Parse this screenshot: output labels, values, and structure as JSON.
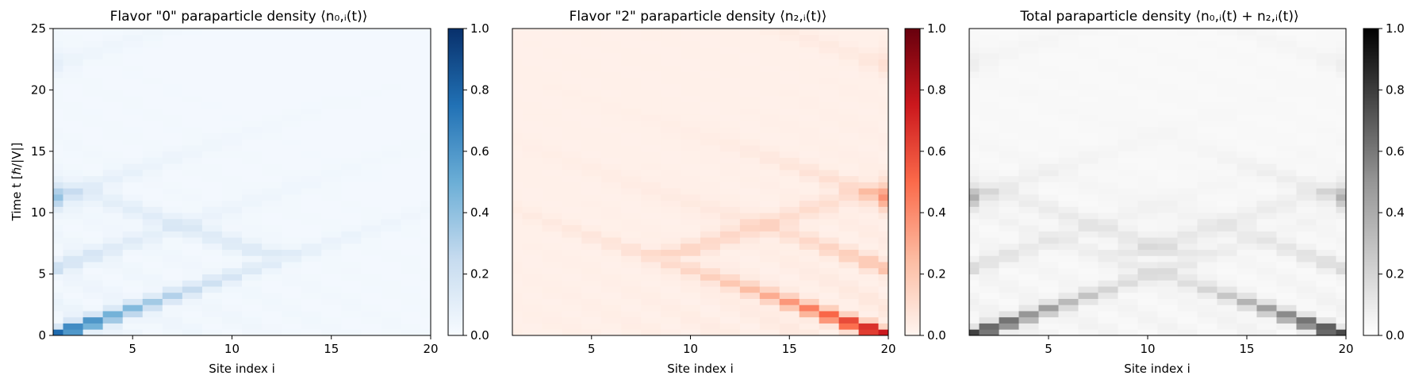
{
  "chart_data": [
    {
      "type": "heatmap",
      "title": "Flavor \"0\" paraparticle density ⟨n₀,ᵢ(t)⟩",
      "xlabel": "Site index i",
      "ylabel": "Time t [ℏ/|V|]",
      "xlim": [
        1,
        20
      ],
      "ylim": [
        0,
        25
      ],
      "xticks": [
        "5",
        "10",
        "15",
        "20"
      ],
      "yticks": [
        "0",
        "5",
        "10",
        "15",
        "20",
        "25"
      ],
      "colormap": "Blues",
      "color_low": "#f7fbff",
      "color_high": "#08306b",
      "colorbar": {
        "range": [
          0,
          1
        ],
        "ticks": [
          "0.0",
          "0.2",
          "0.4",
          "0.6",
          "0.8",
          "1.0"
        ]
      },
      "sites": 20,
      "time_step": 0.5,
      "description_of_pattern": "Excitation starts at site 1 (t=0) and travels ballistically right with velocity ~2 sites per unit time; reflects near t≈6 at site ~10, revivals at site 1 near t≈11.5 and t≈22.5"
    },
    {
      "type": "heatmap",
      "title": "Flavor \"2\" paraparticle density ⟨n₂,ᵢ(t)⟩",
      "xlabel": "Site index i",
      "ylabel": "",
      "xlim": [
        1,
        20
      ],
      "ylim": [
        0,
        25
      ],
      "xticks": [
        "5",
        "10",
        "15",
        "20"
      ],
      "yticks": [],
      "colormap": "Reds",
      "color_low": "#fff5f0",
      "color_high": "#67000d",
      "colorbar": {
        "range": [
          0,
          1
        ],
        "ticks": [
          "0.0",
          "0.2",
          "0.4",
          "0.6",
          "0.8",
          "1.0"
        ]
      },
      "sites": 20,
      "time_step": 0.5
    },
    {
      "type": "heatmap",
      "title": "Total paraparticle density ⟨n₀,ᵢ(t) + n₂,ᵢ(t)⟩",
      "xlabel": "Site index i",
      "ylabel": "",
      "xlim": [
        1,
        20
      ],
      "ylim": [
        0,
        25
      ],
      "xticks": [
        "5",
        "10",
        "15",
        "20"
      ],
      "yticks": [],
      "colormap": "Greys",
      "color_low": "#ffffff",
      "color_high": "#000000",
      "colorbar": {
        "range": [
          0,
          1
        ],
        "ticks": [
          "0.0",
          "0.2",
          "0.4",
          "0.6",
          "0.8",
          "1.0"
        ]
      },
      "sites": 20,
      "time_step": 0.5
    }
  ]
}
